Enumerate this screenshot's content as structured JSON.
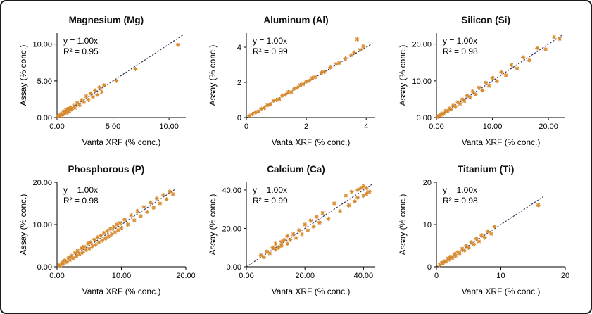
{
  "figure": {
    "background": "#ffffff",
    "border_color": "#1c1c1c"
  },
  "style": {
    "marker_color": "#d78a2e",
    "trendline_color": "#333355",
    "axis_color": "#000000"
  },
  "chart_data": [
    {
      "type": "scatter",
      "id": "magnesium",
      "title": "Magnesium (Mg)",
      "xlabel": "Vanta XRF (% conc.)",
      "ylabel": "Assay (% conc.)",
      "equation": "y = 1.00x",
      "r_squared": "R² = 0.95",
      "xlim": [
        0,
        11.5
      ],
      "ylim": [
        0,
        11.5
      ],
      "xticks": [
        0,
        5,
        10
      ],
      "yticks": [
        0,
        5,
        10
      ],
      "xtick_labels": [
        "0.00",
        "5.00",
        "10.00"
      ],
      "ytick_labels": [
        "0.00",
        "5.00",
        "10.00"
      ],
      "trend_slope": 1.0,
      "trend_end": 11.3,
      "points": [
        [
          0.1,
          0.1
        ],
        [
          0.2,
          0.3
        ],
        [
          0.3,
          0.2
        ],
        [
          0.4,
          0.5
        ],
        [
          0.5,
          0.4
        ],
        [
          0.6,
          0.8
        ],
        [
          0.7,
          0.6
        ],
        [
          0.8,
          1.0
        ],
        [
          0.9,
          0.7
        ],
        [
          1.0,
          1.2
        ],
        [
          1.1,
          0.9
        ],
        [
          1.2,
          1.4
        ],
        [
          1.3,
          1.1
        ],
        [
          1.5,
          1.6
        ],
        [
          1.6,
          1.3
        ],
        [
          1.8,
          2.0
        ],
        [
          2.0,
          1.7
        ],
        [
          2.2,
          2.4
        ],
        [
          2.4,
          2.1
        ],
        [
          2.6,
          2.9
        ],
        [
          2.8,
          2.4
        ],
        [
          3.0,
          3.3
        ],
        [
          3.2,
          2.8
        ],
        [
          3.4,
          3.7
        ],
        [
          3.6,
          3.1
        ],
        [
          3.8,
          4.1
        ],
        [
          4.0,
          3.5
        ],
        [
          4.2,
          4.4
        ],
        [
          5.3,
          5.0
        ],
        [
          7.0,
          6.6
        ],
        [
          10.8,
          9.9
        ]
      ]
    },
    {
      "type": "scatter",
      "id": "aluminum",
      "title": "Aluminum (Al)",
      "xlabel": "Vanta XRF (% conc.)",
      "ylabel": "Assay (% conc.)",
      "equation": "y = 1.00x",
      "r_squared": "R² = 0.99",
      "xlim": [
        0,
        4.3
      ],
      "ylim": [
        0,
        4.8
      ],
      "xticks": [
        0,
        2,
        4
      ],
      "yticks": [
        0,
        2,
        4
      ],
      "xtick_labels": [
        "0",
        "2",
        "4"
      ],
      "ytick_labels": [
        "0",
        "2",
        "4"
      ],
      "trend_slope": 1.0,
      "trend_end": 4.2,
      "points": [
        [
          0.1,
          0.1
        ],
        [
          0.2,
          0.2
        ],
        [
          0.3,
          0.3
        ],
        [
          0.4,
          0.35
        ],
        [
          0.5,
          0.5
        ],
        [
          0.6,
          0.55
        ],
        [
          0.7,
          0.7
        ],
        [
          0.8,
          0.75
        ],
        [
          0.9,
          0.95
        ],
        [
          1.0,
          1.0
        ],
        [
          1.1,
          1.05
        ],
        [
          1.2,
          1.25
        ],
        [
          1.3,
          1.3
        ],
        [
          1.4,
          1.45
        ],
        [
          1.5,
          1.45
        ],
        [
          1.6,
          1.65
        ],
        [
          1.7,
          1.7
        ],
        [
          1.8,
          1.85
        ],
        [
          1.9,
          1.9
        ],
        [
          2.0,
          2.05
        ],
        [
          2.1,
          2.1
        ],
        [
          2.2,
          2.25
        ],
        [
          2.3,
          2.3
        ],
        [
          2.5,
          2.55
        ],
        [
          2.6,
          2.6
        ],
        [
          2.8,
          2.85
        ],
        [
          3.0,
          3.05
        ],
        [
          3.1,
          3.1
        ],
        [
          3.3,
          3.35
        ],
        [
          3.5,
          3.55
        ],
        [
          3.6,
          3.7
        ],
        [
          3.7,
          4.45
        ],
        [
          3.8,
          3.85
        ],
        [
          3.9,
          4.05
        ]
      ]
    },
    {
      "type": "scatter",
      "id": "silicon",
      "title": "Silicon (Si)",
      "xlabel": "Vanta XRF (% conc.)",
      "ylabel": "Assay (% conc.)",
      "equation": "y = 1.00x",
      "r_squared": "R² = 0.98",
      "xlim": [
        0,
        23
      ],
      "ylim": [
        0,
        23
      ],
      "xticks": [
        0,
        10,
        20
      ],
      "yticks": [
        0,
        10,
        20
      ],
      "xtick_labels": [
        "0.00",
        "10.00",
        "20.00"
      ],
      "ytick_labels": [
        "0.00",
        "10.00",
        "20.00"
      ],
      "trend_slope": 1.0,
      "trend_end": 22.5,
      "points": [
        [
          0.3,
          0.2
        ],
        [
          0.5,
          0.5
        ],
        [
          0.8,
          0.7
        ],
        [
          1.0,
          1.1
        ],
        [
          1.3,
          1.0
        ],
        [
          1.6,
          1.8
        ],
        [
          2.0,
          1.7
        ],
        [
          2.3,
          2.5
        ],
        [
          2.6,
          2.2
        ],
        [
          3.0,
          3.3
        ],
        [
          3.4,
          2.9
        ],
        [
          3.8,
          4.2
        ],
        [
          4.2,
          3.7
        ],
        [
          4.6,
          5.0
        ],
        [
          5.0,
          4.5
        ],
        [
          5.5,
          6.0
        ],
        [
          6.0,
          5.4
        ],
        [
          6.5,
          7.1
        ],
        [
          7.0,
          6.3
        ],
        [
          7.6,
          8.2
        ],
        [
          8.2,
          7.4
        ],
        [
          8.8,
          9.5
        ],
        [
          9.4,
          8.6
        ],
        [
          10.0,
          10.8
        ],
        [
          10.8,
          9.9
        ],
        [
          11.6,
          12.4
        ],
        [
          12.4,
          11.5
        ],
        [
          13.4,
          14.3
        ],
        [
          14.4,
          13.4
        ],
        [
          15.5,
          16.4
        ],
        [
          16.6,
          15.6
        ],
        [
          18.0,
          18.9
        ],
        [
          19.5,
          18.6
        ],
        [
          21.0,
          21.9
        ],
        [
          22.0,
          21.4
        ]
      ]
    },
    {
      "type": "scatter",
      "id": "phosphorous",
      "title": "Phosphorous (P)",
      "xlabel": "Vanta XRF (% conc.)",
      "ylabel": "Assay (% conc.)",
      "equation": "y = 1.00x",
      "r_squared": "R² = 0.98",
      "xlim": [
        0,
        20
      ],
      "ylim": [
        0,
        20
      ],
      "xticks": [
        0,
        10,
        20
      ],
      "yticks": [
        0,
        10,
        20
      ],
      "xtick_labels": [
        "0.00",
        "10.00",
        "20.00"
      ],
      "ytick_labels": [
        "0.00",
        "10.00",
        "20.00"
      ],
      "trend_slope": 1.0,
      "trend_end": 18.5,
      "points": [
        [
          0.3,
          0.4
        ],
        [
          0.5,
          0.3
        ],
        [
          0.8,
          1.0
        ],
        [
          1.0,
          0.7
        ],
        [
          1.2,
          1.5
        ],
        [
          1.5,
          1.1
        ],
        [
          1.8,
          2.2
        ],
        [
          2.0,
          1.6
        ],
        [
          2.2,
          2.6
        ],
        [
          2.5,
          2.0
        ],
        [
          2.8,
          3.3
        ],
        [
          3.0,
          2.5
        ],
        [
          3.2,
          3.8
        ],
        [
          3.5,
          3.0
        ],
        [
          3.8,
          4.4
        ],
        [
          4.0,
          3.4
        ],
        [
          4.2,
          4.8
        ],
        [
          4.5,
          4.0
        ],
        [
          4.8,
          5.5
        ],
        [
          5.0,
          4.3
        ],
        [
          5.2,
          5.8
        ],
        [
          5.5,
          4.9
        ],
        [
          5.8,
          6.4
        ],
        [
          6.0,
          5.2
        ],
        [
          6.3,
          7.0
        ],
        [
          6.5,
          5.8
        ],
        [
          6.8,
          7.4
        ],
        [
          7.0,
          6.2
        ],
        [
          7.3,
          8.0
        ],
        [
          7.5,
          6.7
        ],
        [
          7.8,
          8.5
        ],
        [
          8.0,
          7.2
        ],
        [
          8.3,
          9.0
        ],
        [
          8.5,
          7.7
        ],
        [
          8.8,
          9.4
        ],
        [
          9.0,
          8.2
        ],
        [
          9.3,
          10.0
        ],
        [
          9.5,
          8.7
        ],
        [
          9.8,
          10.4
        ],
        [
          10.0,
          9.2
        ],
        [
          10.5,
          11.2
        ],
        [
          11.0,
          10.0
        ],
        [
          11.5,
          12.2
        ],
        [
          12.0,
          11.0
        ],
        [
          12.5,
          13.2
        ],
        [
          13.0,
          12.0
        ],
        [
          13.5,
          14.2
        ],
        [
          14.0,
          13.0
        ],
        [
          14.5,
          15.2
        ],
        [
          15.0,
          14.0
        ],
        [
          15.5,
          16.2
        ],
        [
          16.0,
          15.0
        ],
        [
          16.5,
          17.0
        ],
        [
          17.0,
          16.0
        ],
        [
          17.5,
          17.8
        ],
        [
          18.0,
          17.2
        ]
      ]
    },
    {
      "type": "scatter",
      "id": "calcium",
      "title": "Calcium (Ca)",
      "xlabel": "Vanta XRF (% conc.)",
      "ylabel": "Assay (% conc.)",
      "equation": "y = 1.00x",
      "r_squared": "R² = 0.99",
      "xlim": [
        0,
        44
      ],
      "ylim": [
        0,
        44
      ],
      "xticks": [
        0,
        20,
        40
      ],
      "yticks": [
        0,
        20,
        40
      ],
      "xtick_labels": [
        "0.00",
        "20.00",
        "40.00"
      ],
      "ytick_labels": [
        "0.00",
        "20.00",
        "40.00"
      ],
      "trend_slope": 1.0,
      "trend_end": 43,
      "points": [
        [
          5,
          6
        ],
        [
          6,
          5
        ],
        [
          7,
          8
        ],
        [
          8,
          7
        ],
        [
          9,
          10
        ],
        [
          10,
          9
        ],
        [
          10,
          12
        ],
        [
          11,
          10
        ],
        [
          12,
          13
        ],
        [
          12,
          11
        ],
        [
          13,
          14
        ],
        [
          14,
          12
        ],
        [
          14,
          16
        ],
        [
          15,
          14
        ],
        [
          16,
          17
        ],
        [
          17,
          15
        ],
        [
          18,
          19
        ],
        [
          19,
          17
        ],
        [
          20,
          22
        ],
        [
          21,
          19
        ],
        [
          22,
          24
        ],
        [
          23,
          21
        ],
        [
          24,
          26
        ],
        [
          25,
          23
        ],
        [
          26,
          28
        ],
        [
          28,
          25
        ],
        [
          30,
          33
        ],
        [
          32,
          29
        ],
        [
          34,
          37
        ],
        [
          35,
          32
        ],
        [
          36,
          39
        ],
        [
          37,
          34
        ],
        [
          38,
          40
        ],
        [
          38,
          36
        ],
        [
          39,
          41
        ],
        [
          40,
          37
        ],
        [
          40,
          42
        ],
        [
          41,
          38
        ],
        [
          41,
          41
        ],
        [
          42,
          39
        ]
      ]
    },
    {
      "type": "scatter",
      "id": "titanium",
      "title": "Titanium (Ti)",
      "xlabel": "Vanta XRF (% conc.)",
      "ylabel": "Assay (% conc.)",
      "equation": "y = 1.00x",
      "r_squared": "R² = 0.98",
      "xlim": [
        0,
        20
      ],
      "ylim": [
        0,
        20
      ],
      "xticks": [
        0,
        10,
        20
      ],
      "yticks": [
        0,
        10,
        20
      ],
      "xtick_labels": [
        "0",
        "10",
        "20"
      ],
      "ytick_labels": [
        "0",
        "10",
        "20"
      ],
      "trend_slope": 1.0,
      "trend_end": 16.5,
      "points": [
        [
          0.5,
          0.4
        ],
        [
          0.8,
          0.9
        ],
        [
          1.0,
          0.8
        ],
        [
          1.2,
          1.3
        ],
        [
          1.5,
          1.2
        ],
        [
          1.8,
          2.0
        ],
        [
          2.0,
          1.7
        ],
        [
          2.2,
          2.4
        ],
        [
          2.5,
          2.1
        ],
        [
          2.8,
          3.0
        ],
        [
          3.0,
          2.6
        ],
        [
          3.3,
          3.5
        ],
        [
          3.6,
          3.2
        ],
        [
          4.0,
          4.3
        ],
        [
          4.3,
          3.9
        ],
        [
          4.6,
          5.0
        ],
        [
          5.0,
          4.5
        ],
        [
          5.4,
          5.8
        ],
        [
          5.8,
          5.3
        ],
        [
          6.2,
          6.7
        ],
        [
          6.6,
          6.0
        ],
        [
          7.0,
          7.5
        ],
        [
          7.5,
          6.9
        ],
        [
          8.0,
          8.4
        ],
        [
          8.5,
          7.8
        ],
        [
          9.0,
          9.5
        ],
        [
          15.8,
          14.6
        ]
      ]
    }
  ]
}
